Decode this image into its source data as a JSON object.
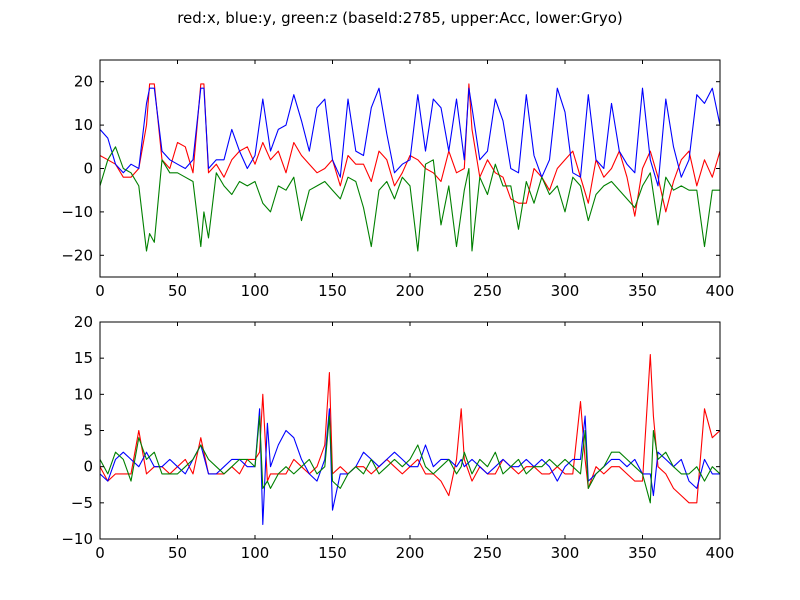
{
  "figure": {
    "suptitle": "red:x, blue:y, green:z (baseId:2785, upper:Acc, lower:Gryo)"
  },
  "chart_data": [
    {
      "type": "line",
      "panel": "upper",
      "title": "",
      "xlabel": "",
      "ylabel": "",
      "xlim": [
        0,
        400
      ],
      "ylim": [
        -25,
        25
      ],
      "xticks": [
        0,
        50,
        100,
        150,
        200,
        250,
        300,
        350,
        400
      ],
      "yticks": [
        -20,
        -10,
        0,
        10,
        20
      ],
      "grid": false,
      "legend": "none",
      "series": [
        {
          "color": "#ff0000",
          "x": [
            0,
            5,
            10,
            15,
            20,
            25,
            30,
            32,
            35,
            40,
            45,
            50,
            55,
            60,
            65,
            67,
            70,
            75,
            80,
            85,
            90,
            95,
            100,
            105,
            110,
            115,
            120,
            125,
            130,
            135,
            140,
            145,
            150,
            155,
            160,
            165,
            170,
            175,
            180,
            185,
            190,
            195,
            200,
            205,
            210,
            215,
            220,
            225,
            230,
            235,
            238,
            240,
            245,
            250,
            255,
            260,
            265,
            270,
            275,
            280,
            285,
            290,
            295,
            300,
            305,
            310,
            315,
            320,
            325,
            330,
            335,
            340,
            345,
            350,
            355,
            360,
            365,
            370,
            375,
            380,
            385,
            390,
            395,
            400
          ],
          "y": [
            3,
            2,
            1,
            -2,
            -2,
            0,
            10,
            19.5,
            19.5,
            2,
            0,
            6,
            5,
            -1,
            19.5,
            19.5,
            -1,
            1,
            -2,
            2,
            4,
            5,
            1,
            6,
            2,
            4,
            -1,
            6,
            3,
            1,
            -1,
            0,
            2,
            -4,
            3,
            1,
            1,
            -3,
            4,
            2,
            -4,
            -1,
            3,
            2,
            0,
            -1,
            -3,
            4,
            -1,
            0,
            19.5,
            9,
            -2,
            2,
            -1,
            -2,
            -7,
            -8,
            -8,
            0,
            -2,
            -5,
            0,
            2,
            4,
            -2,
            -8,
            2,
            -2,
            0,
            4,
            -2,
            -11,
            0,
            4,
            -2,
            -10,
            -3,
            2,
            4,
            -4,
            2,
            -2,
            4
          ]
        },
        {
          "color": "#0000ff",
          "x": [
            0,
            5,
            10,
            15,
            20,
            25,
            30,
            32,
            35,
            40,
            45,
            50,
            55,
            60,
            65,
            67,
            70,
            75,
            80,
            85,
            90,
            95,
            100,
            105,
            110,
            115,
            120,
            125,
            130,
            135,
            140,
            145,
            150,
            155,
            160,
            165,
            170,
            175,
            180,
            185,
            190,
            195,
            200,
            205,
            210,
            215,
            220,
            225,
            230,
            235,
            238,
            240,
            245,
            250,
            255,
            260,
            265,
            270,
            275,
            280,
            285,
            290,
            295,
            300,
            305,
            310,
            315,
            320,
            325,
            330,
            335,
            340,
            345,
            350,
            355,
            360,
            365,
            370,
            375,
            380,
            385,
            390,
            395,
            400
          ],
          "y": [
            9,
            7,
            1,
            -1,
            1,
            0,
            15,
            18.5,
            18.5,
            4,
            2,
            1,
            0,
            2,
            18.5,
            18.5,
            0,
            2,
            2,
            9,
            4,
            0,
            3,
            16,
            4,
            9,
            10,
            17,
            11,
            4,
            14,
            16,
            2,
            -2,
            16,
            4,
            3,
            14,
            18.5,
            8,
            -1,
            1,
            2,
            17,
            4,
            16,
            14,
            4,
            16,
            2,
            18.5,
            14,
            2,
            4,
            16,
            11,
            0,
            -1,
            17,
            3,
            -2,
            2,
            18.5,
            13,
            -1,
            -2,
            17,
            2,
            0,
            15,
            4,
            1,
            -1,
            18.5,
            2,
            -4,
            16,
            5,
            -2,
            2,
            17,
            15,
            18.5,
            10
          ]
        },
        {
          "color": "#008000",
          "x": [
            0,
            5,
            10,
            15,
            20,
            25,
            30,
            32,
            35,
            40,
            45,
            50,
            55,
            60,
            65,
            67,
            70,
            75,
            80,
            85,
            90,
            95,
            100,
            105,
            110,
            115,
            120,
            125,
            130,
            135,
            140,
            145,
            150,
            155,
            160,
            165,
            170,
            175,
            180,
            185,
            190,
            195,
            200,
            205,
            210,
            215,
            220,
            225,
            230,
            235,
            238,
            240,
            245,
            250,
            255,
            260,
            265,
            270,
            275,
            280,
            285,
            290,
            295,
            300,
            305,
            310,
            315,
            320,
            325,
            330,
            335,
            340,
            345,
            350,
            355,
            360,
            365,
            370,
            375,
            380,
            385,
            390,
            395,
            400
          ],
          "y": [
            -4,
            2,
            5,
            0,
            -1,
            -4,
            -19,
            -15,
            -17,
            2,
            -1,
            -1,
            -2,
            -3,
            -18,
            -10,
            -16,
            -1,
            -4,
            -6,
            -3,
            -4,
            -3,
            -8,
            -10,
            -4,
            -5,
            -2,
            -12,
            -5,
            -4,
            -3,
            -5,
            -7,
            -2,
            -3,
            -9,
            -18,
            -5,
            -3,
            -7,
            -2,
            -4,
            -19,
            1,
            2,
            -13,
            -4,
            -18,
            -5,
            0,
            -19,
            -2,
            -6,
            1,
            -4,
            -4,
            -14,
            -3,
            -8,
            -2,
            -6,
            -4,
            -10,
            -2,
            -4,
            -12,
            -6,
            -4,
            -3,
            -5,
            -7,
            -9,
            -4,
            -1,
            -13,
            -2,
            -5,
            -4,
            -5,
            -5,
            -18,
            -5,
            -5
          ]
        }
      ]
    },
    {
      "type": "line",
      "panel": "lower",
      "title": "",
      "xlabel": "",
      "ylabel": "",
      "xlim": [
        0,
        400
      ],
      "ylim": [
        -10,
        20
      ],
      "xticks": [
        0,
        50,
        100,
        150,
        200,
        250,
        300,
        350,
        400
      ],
      "yticks": [
        -10,
        -5,
        0,
        5,
        10,
        15,
        20
      ],
      "grid": false,
      "legend": "none",
      "series": [
        {
          "color": "#ff0000",
          "x": [
            0,
            5,
            10,
            15,
            20,
            25,
            30,
            35,
            40,
            45,
            50,
            55,
            60,
            65,
            70,
            75,
            80,
            85,
            90,
            95,
            100,
            103,
            105,
            108,
            110,
            115,
            120,
            125,
            130,
            135,
            140,
            145,
            148,
            150,
            155,
            160,
            165,
            170,
            175,
            180,
            185,
            190,
            195,
            200,
            205,
            210,
            215,
            220,
            225,
            230,
            233,
            235,
            240,
            245,
            250,
            255,
            260,
            265,
            270,
            275,
            280,
            285,
            290,
            295,
            300,
            305,
            310,
            313,
            315,
            320,
            325,
            330,
            335,
            340,
            345,
            350,
            355,
            357,
            360,
            365,
            370,
            375,
            380,
            385,
            390,
            395,
            400
          ],
          "y": [
            0,
            -2,
            -1,
            -1,
            -1,
            5,
            -1,
            0,
            0,
            -1,
            0,
            1,
            -1,
            4,
            -1,
            -1,
            -1,
            0,
            -1,
            1,
            1,
            2,
            10,
            -2,
            -1,
            -1,
            -1,
            1,
            0,
            -1,
            0,
            3,
            13,
            -1,
            0,
            -1,
            0,
            0,
            -1,
            0,
            1,
            0,
            -1,
            0,
            1,
            -1,
            -1,
            -2,
            -4,
            1,
            8,
            1,
            -2,
            0,
            -1,
            -1,
            1,
            0,
            -1,
            0,
            0,
            -1,
            -1,
            0,
            -1,
            -1,
            9,
            1,
            -3,
            0,
            -1,
            0,
            0,
            -1,
            -2,
            -2,
            15.5,
            7,
            0,
            -1,
            -3,
            -4,
            -5,
            -5,
            8,
            4,
            5
          ]
        },
        {
          "color": "#0000ff",
          "x": [
            0,
            5,
            10,
            15,
            20,
            25,
            30,
            35,
            40,
            45,
            50,
            55,
            60,
            65,
            70,
            75,
            80,
            85,
            90,
            95,
            100,
            103,
            105,
            108,
            110,
            115,
            120,
            125,
            130,
            135,
            140,
            145,
            148,
            150,
            155,
            160,
            165,
            170,
            175,
            180,
            185,
            190,
            195,
            200,
            205,
            210,
            215,
            220,
            225,
            230,
            233,
            235,
            240,
            245,
            250,
            255,
            260,
            265,
            270,
            275,
            280,
            285,
            290,
            295,
            300,
            305,
            310,
            313,
            315,
            320,
            325,
            330,
            335,
            340,
            345,
            350,
            355,
            357,
            360,
            365,
            370,
            375,
            380,
            385,
            390,
            395,
            400
          ],
          "y": [
            -1,
            -2,
            1,
            2,
            1,
            0,
            2,
            0,
            0,
            1,
            0,
            -1,
            1,
            3,
            -1,
            -1,
            0,
            1,
            1,
            0,
            0,
            8,
            -8,
            6,
            0,
            3,
            5,
            4,
            1,
            -1,
            -2,
            1,
            8,
            -6,
            -1,
            -1,
            0,
            2,
            1,
            0,
            1,
            2,
            1,
            0,
            0,
            3,
            0,
            1,
            1,
            0,
            1,
            0,
            1,
            0,
            -1,
            0,
            1,
            0,
            0,
            1,
            0,
            1,
            0,
            -2,
            0,
            1,
            1,
            7,
            -2,
            -1,
            0,
            1,
            1,
            0,
            1,
            -1,
            -1,
            -4,
            2,
            1,
            0,
            1,
            -2,
            -3,
            1,
            -1,
            -1
          ]
        },
        {
          "color": "#008000",
          "x": [
            0,
            5,
            10,
            15,
            20,
            25,
            30,
            35,
            40,
            45,
            50,
            55,
            60,
            65,
            70,
            75,
            80,
            85,
            90,
            95,
            100,
            103,
            105,
            108,
            110,
            115,
            120,
            125,
            130,
            135,
            140,
            145,
            148,
            150,
            155,
            160,
            165,
            170,
            175,
            180,
            185,
            190,
            195,
            200,
            205,
            210,
            215,
            220,
            225,
            230,
            233,
            235,
            240,
            245,
            250,
            255,
            260,
            265,
            270,
            275,
            280,
            285,
            290,
            295,
            300,
            305,
            310,
            313,
            315,
            320,
            325,
            330,
            335,
            340,
            345,
            350,
            355,
            357,
            360,
            365,
            370,
            375,
            380,
            385,
            390,
            395,
            400
          ],
          "y": [
            1,
            -1,
            2,
            1,
            -2,
            4,
            1,
            2,
            -1,
            -1,
            -1,
            0,
            1,
            3,
            1,
            0,
            -1,
            0,
            1,
            1,
            0,
            7,
            -3,
            -2,
            -3,
            -1,
            0,
            -1,
            0,
            1,
            -1,
            0,
            7,
            -2,
            -3,
            -1,
            0,
            -1,
            1,
            -1,
            0,
            1,
            0,
            1,
            3,
            0,
            -1,
            0,
            1,
            -1,
            0,
            2,
            -1,
            1,
            0,
            2,
            -1,
            0,
            1,
            -1,
            0,
            0,
            1,
            0,
            1,
            0,
            -1,
            5,
            -3,
            -1,
            0,
            2,
            2,
            1,
            0,
            -1,
            -5,
            5,
            1,
            2,
            0,
            -1,
            -1,
            0,
            -2,
            0,
            -1
          ]
        }
      ]
    }
  ]
}
